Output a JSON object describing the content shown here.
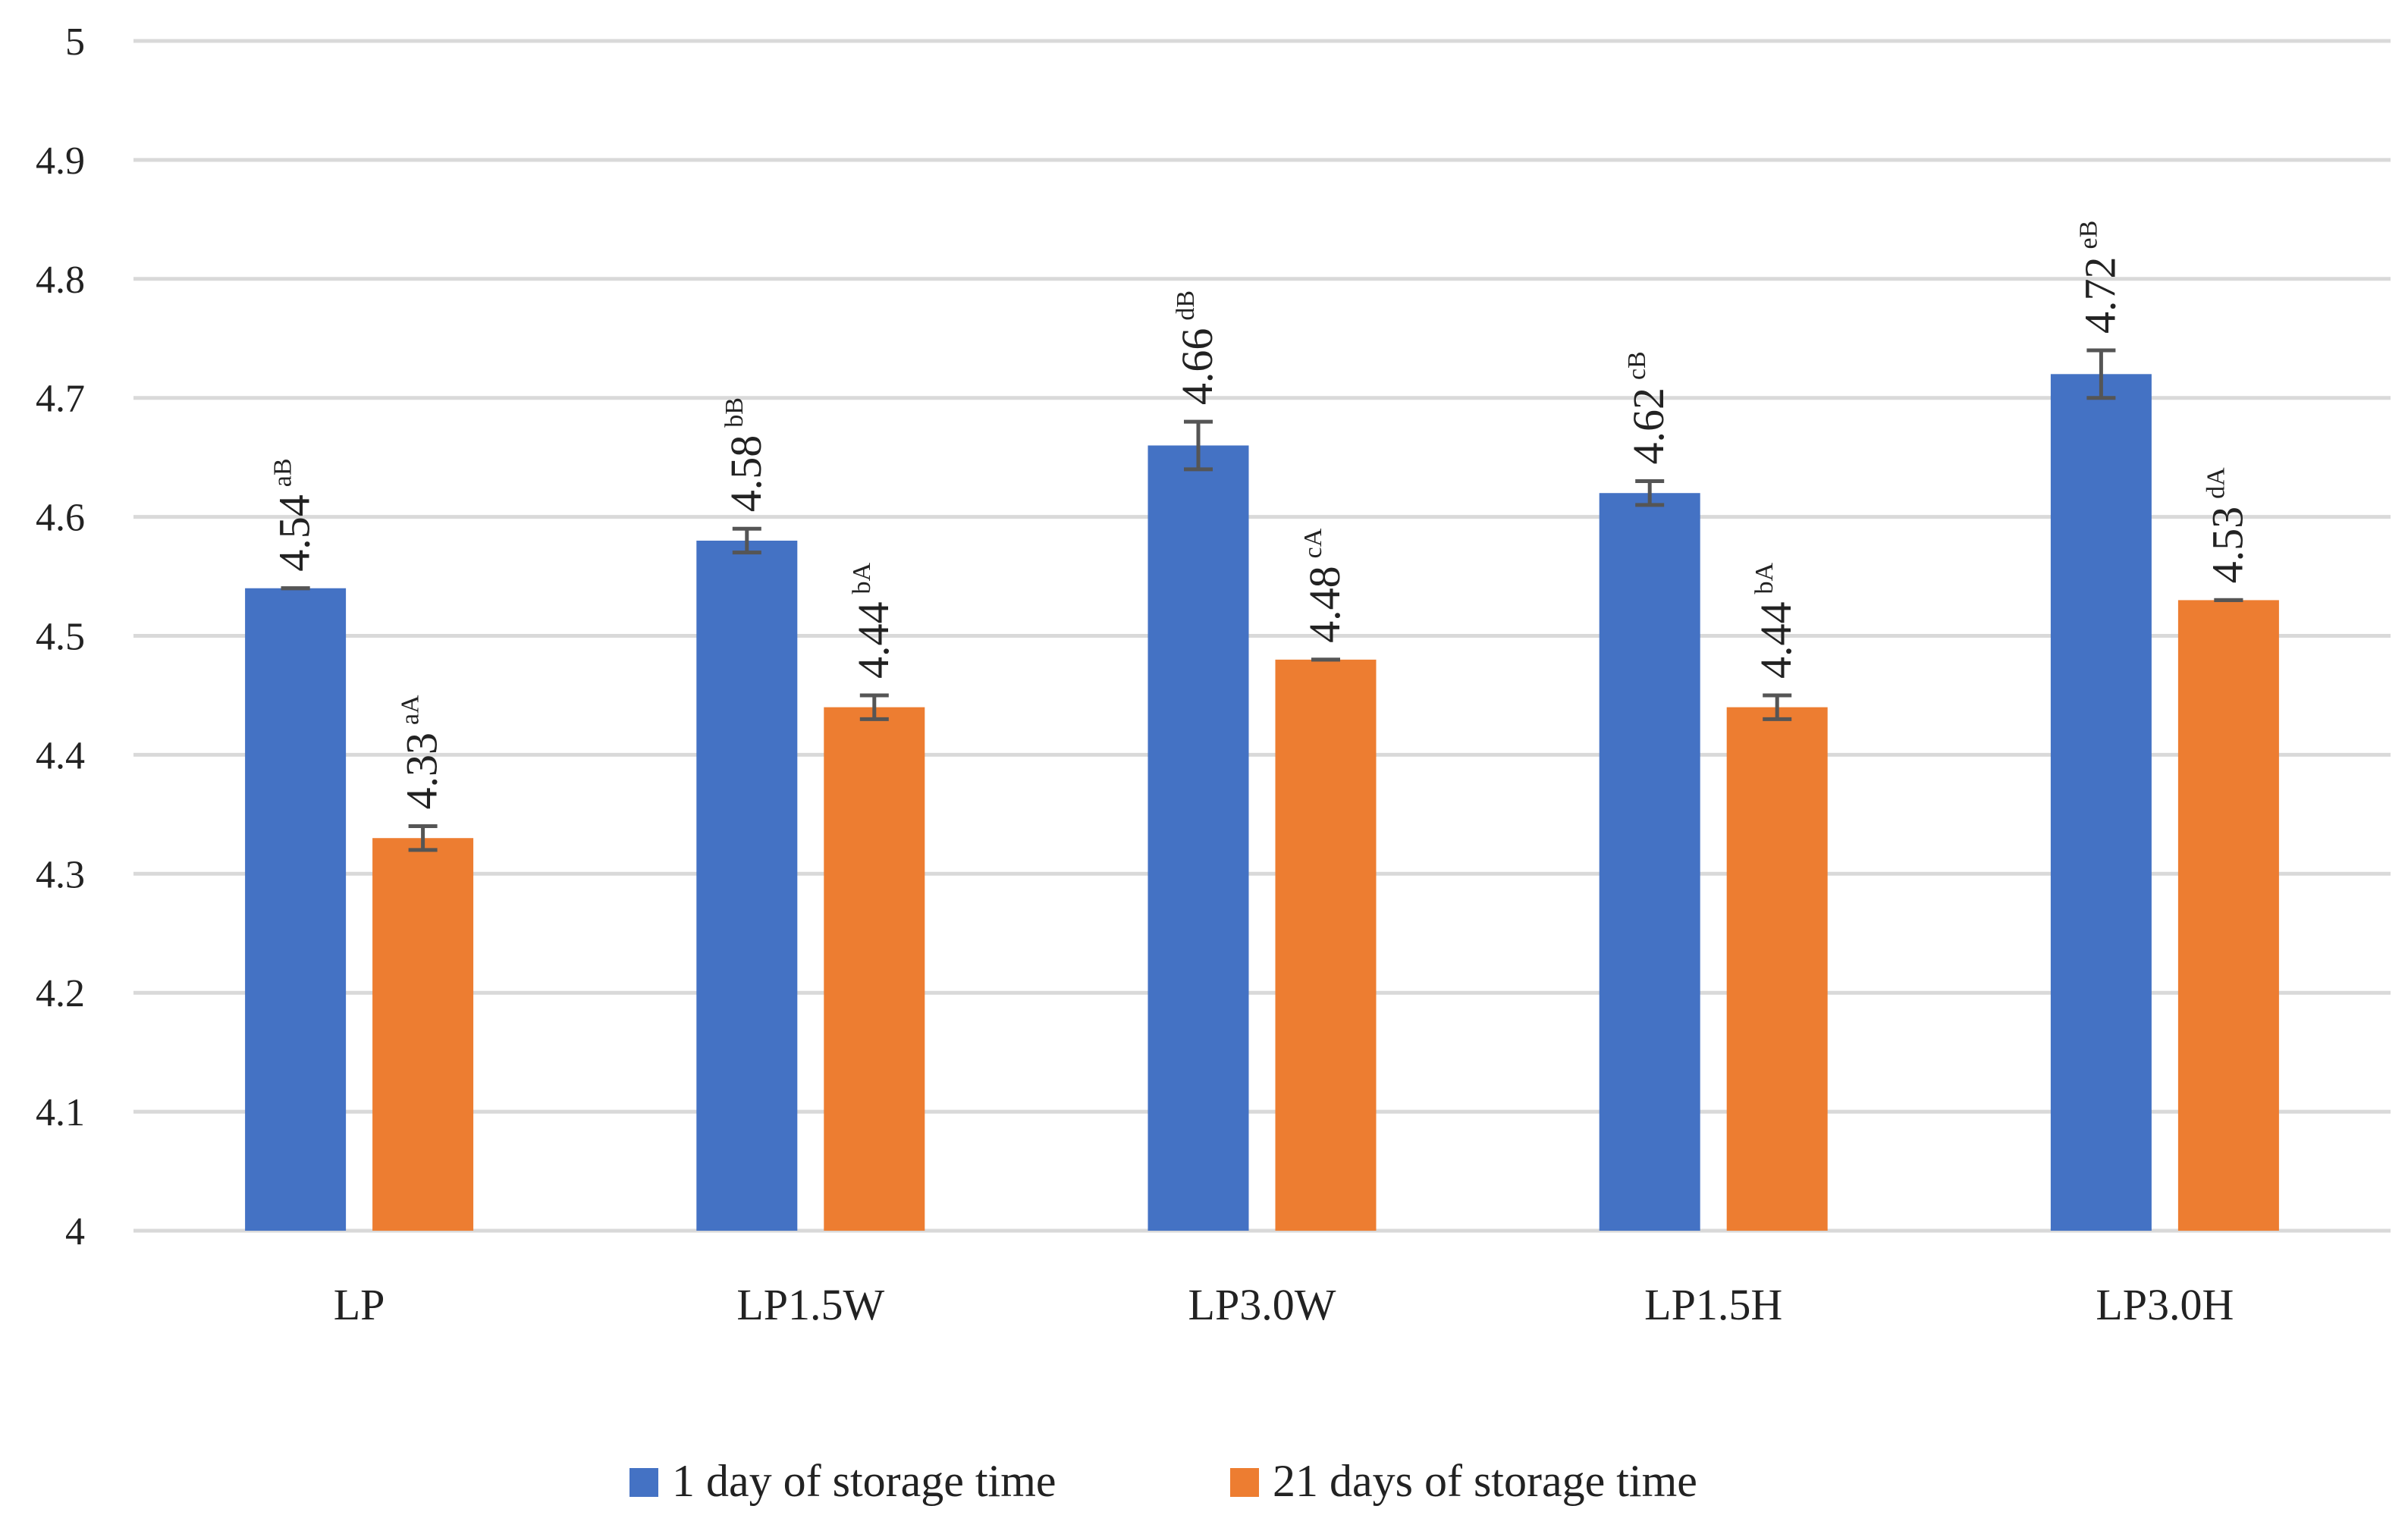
{
  "chart_data": {
    "type": "bar",
    "title": "",
    "xlabel": "",
    "ylabel": "",
    "categories": [
      "LP",
      "LP1.5W",
      "LP3.0W",
      "LP1.5H",
      "LP3.0H"
    ],
    "ylim": [
      4,
      5
    ],
    "yticks": [
      "4",
      "4.1",
      "4.2",
      "4.3",
      "4.4",
      "4.5",
      "4.6",
      "4.7",
      "4.8",
      "4.9",
      "5"
    ],
    "grid": true,
    "legend_position": "bottom",
    "series": [
      {
        "name": "1 day of storage time",
        "color": "#4472C4",
        "values": [
          4.54,
          4.58,
          4.66,
          4.62,
          4.72
        ],
        "errors": [
          0.0,
          0.01,
          0.02,
          0.01,
          0.02
        ],
        "value_labels": [
          "4.54",
          "4.58",
          "4.66",
          "4.62",
          "4.72"
        ],
        "letters": [
          "aB",
          "bB",
          "dB",
          "cB",
          "eB"
        ]
      },
      {
        "name": "21 days of storage time",
        "color": "#ED7D31",
        "values": [
          4.33,
          4.44,
          4.48,
          4.44,
          4.53
        ],
        "errors": [
          0.01,
          0.01,
          0.0,
          0.01,
          0.0
        ],
        "value_labels": [
          "4.33",
          "4.44",
          "4.48",
          "4.44",
          "4.53"
        ],
        "letters": [
          "aA",
          "bA",
          "cA",
          "bA",
          "dA"
        ]
      }
    ]
  }
}
